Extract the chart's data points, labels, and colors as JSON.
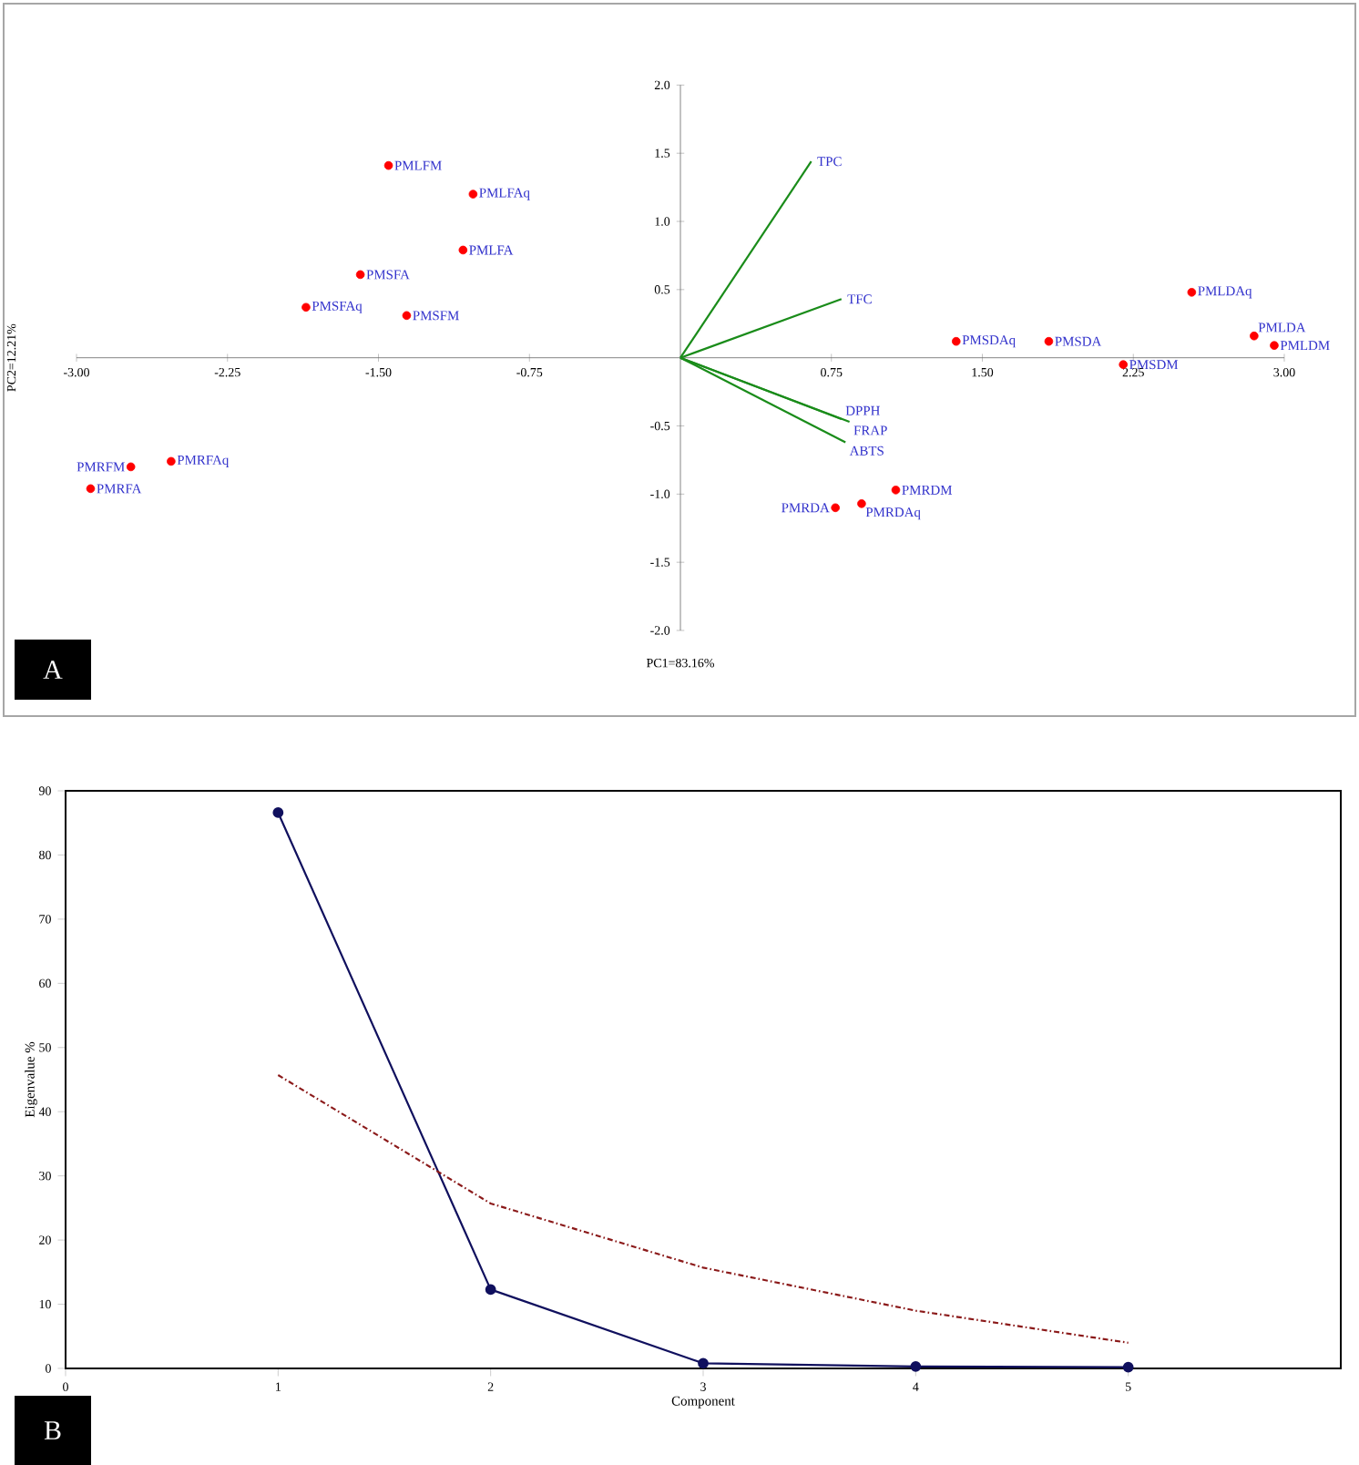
{
  "chart_data": [
    {
      "type": "scatter",
      "xlabel": "PC1=83.16%",
      "ylabel": "PC2=12.21%",
      "xlim": [
        -3,
        3
      ],
      "ylim": [
        -2,
        2
      ],
      "xticks": [
        {
          "value": -3,
          "label": "-3.00"
        },
        {
          "value": -2.25,
          "label": "-2.25"
        },
        {
          "value": -1.5,
          "label": "-1.50"
        },
        {
          "value": -0.75,
          "label": "-0.75"
        },
        {
          "value": 0.75,
          "label": "0.75"
        },
        {
          "value": 1.5,
          "label": "1.50"
        },
        {
          "value": 2.25,
          "label": "2.25"
        },
        {
          "value": 3,
          "label": "3.00"
        }
      ],
      "yticks": [
        {
          "value": -2,
          "label": "-2.0"
        },
        {
          "value": -1.5,
          "label": "-1.5"
        },
        {
          "value": -1,
          "label": "-1.0"
        },
        {
          "value": -0.5,
          "label": "-0.5"
        },
        {
          "value": 0.5,
          "label": "0.5"
        },
        {
          "value": 1,
          "label": "1.0"
        },
        {
          "value": 1.5,
          "label": "1.5"
        },
        {
          "value": 2,
          "label": "2.0"
        }
      ],
      "series": [
        {
          "type": "scatter",
          "color": "#ff0000",
          "marker": "circle",
          "x": [
            -1.45,
            -1.03,
            -1.08,
            -1.59,
            -1.86,
            -1.36,
            -2.53,
            -2.73,
            -2.93,
            1.37,
            1.83,
            2.2,
            2.54,
            2.85,
            2.95,
            0.9,
            0.77,
            1.07
          ],
          "values": [
            1.41,
            1.2,
            0.79,
            0.61,
            0.37,
            0.31,
            -0.76,
            -0.8,
            -0.96,
            0.12,
            0.12,
            -0.05,
            0.48,
            0.16,
            0.09,
            -1.07,
            -1.1,
            -0.97
          ]
        },
        {
          "type": "line",
          "name": "TPC",
          "color": "#1a8c1a",
          "x": [
            0,
            0.65
          ],
          "values": [
            0,
            1.44
          ]
        },
        {
          "type": "line",
          "name": "TFC",
          "color": "#1a8c1a",
          "x": [
            0,
            0.8
          ],
          "values": [
            0,
            0.43
          ]
        },
        {
          "type": "line",
          "name": "DPPH",
          "color": "#1a8c1a",
          "x": [
            0,
            0.8
          ],
          "values": [
            0,
            -0.45
          ]
        },
        {
          "type": "line",
          "name": "FRAP",
          "color": "#1a8c1a",
          "x": [
            0,
            0.84
          ],
          "values": [
            0,
            -0.47
          ]
        },
        {
          "type": "line",
          "name": "ABTS",
          "color": "#1a8c1a",
          "x": [
            0,
            0.82
          ],
          "values": [
            0,
            -0.62
          ]
        }
      ],
      "annotations": [
        {
          "text": "PMLFM",
          "x": -1.45,
          "y": 1.41
        },
        {
          "text": "PMLFAq",
          "x": -1.03,
          "y": 1.2
        },
        {
          "text": "PMLFA",
          "x": -1.08,
          "y": 0.79
        },
        {
          "text": "PMSFA",
          "x": -1.59,
          "y": 0.61
        },
        {
          "text": "PMSFAq",
          "x": -1.86,
          "y": 0.37
        },
        {
          "text": "PMSFM",
          "x": -1.36,
          "y": 0.31
        },
        {
          "text": "PMRFAq",
          "x": -2.53,
          "y": -0.76
        },
        {
          "text": "PMRFM",
          "x": -2.73,
          "y": -0.8
        },
        {
          "text": "PMRFA",
          "x": -2.93,
          "y": -0.96
        },
        {
          "text": "PMSDAq",
          "x": 1.37,
          "y": 0.12
        },
        {
          "text": "PMSDA",
          "x": 1.83,
          "y": 0.12
        },
        {
          "text": "PMSDM",
          "x": 2.2,
          "y": -0.05
        },
        {
          "text": "PMLDAq",
          "x": 2.54,
          "y": 0.48
        },
        {
          "text": "PMLDA",
          "x": 2.85,
          "y": 0.16
        },
        {
          "text": "PMLDM",
          "x": 2.95,
          "y": 0.09
        },
        {
          "text": "PMRDAq",
          "x": 0.9,
          "y": -1.07
        },
        {
          "text": "PMRDA",
          "x": 0.77,
          "y": -1.1
        },
        {
          "text": "PMRDM",
          "x": 1.07,
          "y": -0.97
        },
        "A"
      ]
    },
    {
      "type": "line",
      "xlabel": "Component",
      "ylabel": "Eigenvalue %",
      "xlim": [
        0,
        6
      ],
      "ylim": [
        0,
        90
      ],
      "xticks": [
        0,
        1,
        2,
        3,
        4,
        5
      ],
      "yticks": [
        0,
        10,
        20,
        30,
        40,
        50,
        60,
        70,
        80,
        90
      ],
      "x": [
        1,
        2,
        3,
        4,
        5
      ],
      "series": [
        {
          "type": "line",
          "color": "#10105e",
          "marker": "circle",
          "line_style": "solid",
          "values": [
            86.6,
            12.3,
            0.8,
            0.3,
            0.2
          ]
        },
        {
          "type": "line",
          "color": "#8b1a1a",
          "marker": "none",
          "line_style": "dashed",
          "values": [
            45.7,
            25.7,
            15.7,
            9,
            4
          ]
        }
      ],
      "annotations": [
        "B"
      ]
    }
  ]
}
